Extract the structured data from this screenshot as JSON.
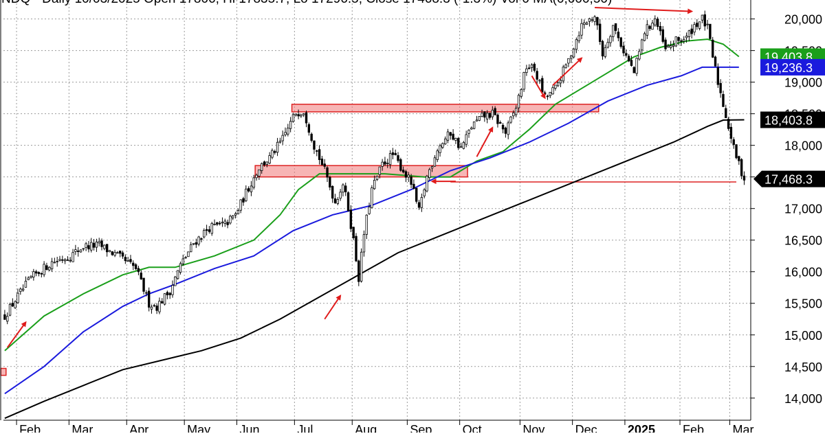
{
  "chart_data": {
    "type": "candlestick",
    "header_text": "NDQ - Daily 10/03/2025 Open 17806, Hi 17835.7, Lo 17296.5, Close 17468.3 (-1.3%) Vol 0 MA(0,000,50)",
    "y_ticks": [
      "20,000",
      "19,500",
      "19,000",
      "18,500",
      "18,000",
      "17,500",
      "17,000",
      "16,500",
      "16,000",
      "15,500",
      "15,000",
      "14,500",
      "14,000"
    ],
    "y_tick_values": [
      20000,
      19500,
      19000,
      18500,
      18000,
      17500,
      17000,
      16500,
      16000,
      15500,
      15000,
      14500,
      14000
    ],
    "ylim": [
      13650,
      20300
    ],
    "months": [
      "Feb",
      "Mar",
      "Apr",
      "May",
      "Jun",
      "Jul",
      "Aug",
      "Sep",
      "Oct",
      "Nov",
      "Dec",
      "2025",
      "Feb",
      "Mar"
    ],
    "month_index": [
      5,
      25,
      47,
      69,
      89,
      111,
      133,
      154,
      174,
      197,
      217,
      237,
      258,
      277
    ],
    "n_bars": 285,
    "anchors": [
      [
        0,
        15300
      ],
      [
        4,
        15550
      ],
      [
        10,
        15900
      ],
      [
        18,
        16150
      ],
      [
        25,
        16250
      ],
      [
        30,
        16400
      ],
      [
        36,
        16420
      ],
      [
        43,
        16250
      ],
      [
        50,
        16050
      ],
      [
        55,
        15500
      ],
      [
        58,
        15450
      ],
      [
        63,
        15700
      ],
      [
        67,
        16100
      ],
      [
        72,
        16450
      ],
      [
        78,
        16700
      ],
      [
        84,
        16750
      ],
      [
        88,
        16900
      ],
      [
        92,
        17250
      ],
      [
        97,
        17650
      ],
      [
        101,
        17800
      ],
      [
        106,
        18100
      ],
      [
        111,
        18520
      ],
      [
        114,
        18550
      ],
      [
        118,
        18000
      ],
      [
        122,
        17600
      ],
      [
        126,
        17100
      ],
      [
        129,
        17400
      ],
      [
        131,
        17000
      ],
      [
        133,
        16500
      ],
      [
        135,
        15900
      ],
      [
        137,
        16600
      ],
      [
        140,
        17300
      ],
      [
        144,
        17700
      ],
      [
        148,
        17850
      ],
      [
        152,
        17600
      ],
      [
        155,
        17400
      ],
      [
        158,
        16950
      ],
      [
        161,
        17500
      ],
      [
        165,
        17950
      ],
      [
        170,
        18200
      ],
      [
        174,
        17950
      ],
      [
        178,
        18300
      ],
      [
        182,
        18450
      ],
      [
        186,
        18500
      ],
      [
        191,
        18200
      ],
      [
        195,
        18600
      ],
      [
        199,
        19250
      ],
      [
        202,
        19200
      ],
      [
        206,
        18750
      ],
      [
        210,
        18900
      ],
      [
        215,
        19350
      ],
      [
        220,
        19900
      ],
      [
        225,
        20050
      ],
      [
        228,
        19450
      ],
      [
        232,
        19900
      ],
      [
        236,
        19500
      ],
      [
        240,
        19150
      ],
      [
        244,
        19800
      ],
      [
        248,
        20000
      ],
      [
        252,
        19500
      ],
      [
        256,
        19650
      ],
      [
        260,
        19700
      ],
      [
        263,
        19900
      ],
      [
        266,
        20000
      ],
      [
        268,
        19850
      ],
      [
        270,
        19400
      ],
      [
        272,
        19000
      ],
      [
        274,
        18650
      ],
      [
        276,
        18300
      ],
      [
        278,
        17950
      ],
      [
        280,
        17700
      ],
      [
        282,
        17468
      ]
    ],
    "moving_averages": [
      {
        "color": "#1a9f1a",
        "value_label": "19,403.8",
        "points": [
          [
            0,
            14750
          ],
          [
            15,
            15300
          ],
          [
            30,
            15650
          ],
          [
            45,
            15950
          ],
          [
            55,
            16070
          ],
          [
            65,
            16070
          ],
          [
            80,
            16250
          ],
          [
            95,
            16500
          ],
          [
            105,
            16900
          ],
          [
            112,
            17300
          ],
          [
            120,
            17550
          ],
          [
            130,
            17550
          ],
          [
            145,
            17550
          ],
          [
            160,
            17500
          ],
          [
            170,
            17500
          ],
          [
            180,
            17750
          ],
          [
            190,
            17900
          ],
          [
            200,
            18250
          ],
          [
            210,
            18650
          ],
          [
            220,
            18900
          ],
          [
            230,
            19150
          ],
          [
            240,
            19400
          ],
          [
            250,
            19550
          ],
          [
            260,
            19650
          ],
          [
            268,
            19680
          ],
          [
            274,
            19600
          ],
          [
            280,
            19404
          ]
        ]
      },
      {
        "color": "#1a1add",
        "value_label": "19,236.3",
        "points": [
          [
            0,
            14070
          ],
          [
            15,
            14500
          ],
          [
            30,
            15050
          ],
          [
            45,
            15450
          ],
          [
            55,
            15650
          ],
          [
            65,
            15800
          ],
          [
            80,
            16050
          ],
          [
            95,
            16250
          ],
          [
            110,
            16650
          ],
          [
            125,
            16900
          ],
          [
            140,
            17050
          ],
          [
            155,
            17300
          ],
          [
            170,
            17600
          ],
          [
            185,
            17800
          ],
          [
            200,
            18050
          ],
          [
            215,
            18350
          ],
          [
            230,
            18700
          ],
          [
            245,
            18950
          ],
          [
            258,
            19100
          ],
          [
            266,
            19236
          ],
          [
            280,
            19236
          ]
        ]
      },
      {
        "color": "#000000",
        "value_label": "18,403.8",
        "points": [
          [
            0,
            13680
          ],
          [
            15,
            13950
          ],
          [
            30,
            14200
          ],
          [
            45,
            14450
          ],
          [
            60,
            14600
          ],
          [
            75,
            14750
          ],
          [
            90,
            14950
          ],
          [
            105,
            15250
          ],
          [
            120,
            15600
          ],
          [
            135,
            15950
          ],
          [
            150,
            16300
          ],
          [
            165,
            16550
          ],
          [
            180,
            16800
          ],
          [
            195,
            17050
          ],
          [
            210,
            17300
          ],
          [
            225,
            17550
          ],
          [
            240,
            17800
          ],
          [
            255,
            18050
          ],
          [
            268,
            18300
          ],
          [
            274,
            18400
          ],
          [
            282,
            18404
          ]
        ]
      }
    ],
    "last_close_label": "17,468.3",
    "last_close_color": "#000000",
    "resistance_zones": [
      {
        "x0": 110,
        "x1": 227,
        "y0": 18530,
        "y1": 18650
      },
      {
        "x0": 96,
        "x1": 177,
        "y0": 17500,
        "y1": 17680
      },
      {
        "x0": -1,
        "x1": 1,
        "y0": 14360,
        "y1": 14470
      }
    ],
    "support_line": {
      "x0": 170,
      "x1": 279,
      "y": 17420
    },
    "arrows": [
      {
        "from": [
          1,
          14800
        ],
        "to": [
          8,
          15200
        ]
      },
      {
        "from": [
          122,
          15250
        ],
        "to": [
          128,
          15620
        ]
      },
      {
        "from": [
          180,
          17820
        ],
        "to": [
          186,
          18280
        ]
      },
      {
        "from": [
          209,
          18950
        ],
        "to": [
          220,
          19380
        ]
      },
      {
        "from": [
          201,
          19100
        ],
        "to": [
          206,
          18750
        ]
      },
      {
        "from": [
          225,
          20180
        ],
        "to": [
          262,
          20120
        ]
      },
      {
        "from": [
          172,
          17430
        ],
        "to": [
          163,
          17430
        ]
      }
    ]
  }
}
